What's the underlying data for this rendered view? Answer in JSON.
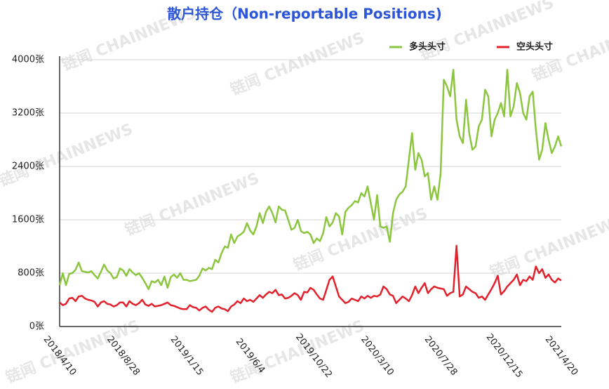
{
  "chart_data": {
    "type": "line",
    "title": "散户持仓（Non-reportable Positions)",
    "watermark": "链闻 CHAINNEWS",
    "categories": [
      "2018/4/10",
      null,
      null,
      null,
      null,
      null,
      null,
      null,
      null,
      null,
      null,
      null,
      null,
      null,
      null,
      null,
      null,
      null,
      null,
      null,
      "2018/8/28",
      null,
      null,
      null,
      null,
      null,
      null,
      null,
      null,
      null,
      null,
      null,
      null,
      null,
      null,
      null,
      null,
      null,
      null,
      null,
      "2019/1/15",
      null,
      null,
      null,
      null,
      null,
      null,
      null,
      null,
      null,
      null,
      null,
      null,
      null,
      null,
      null,
      null,
      null,
      null,
      null,
      "2019/6/4",
      null,
      null,
      null,
      null,
      null,
      null,
      null,
      null,
      null,
      null,
      null,
      null,
      null,
      null,
      null,
      null,
      null,
      null,
      null,
      "2019/10/22",
      null,
      null,
      null,
      null,
      null,
      null,
      null,
      null,
      null,
      null,
      null,
      null,
      null,
      null,
      null,
      null,
      null,
      null,
      null,
      "2020/3/10",
      null,
      null,
      null,
      null,
      null,
      null,
      null,
      null,
      null,
      null,
      null,
      null,
      null,
      null,
      null,
      null,
      null,
      null,
      null,
      "2020/7/28",
      null,
      null,
      null,
      null,
      null,
      null,
      null,
      null,
      null,
      null,
      null,
      null,
      null,
      null,
      null,
      null,
      null,
      null,
      null,
      "2020/12/15",
      null,
      null,
      null,
      null,
      null,
      null,
      null,
      null,
      null,
      null,
      null,
      null,
      null,
      null,
      null,
      null,
      null,
      "2021/4/20"
    ],
    "series": [
      {
        "name": "多头头寸",
        "color": "#8cc63f",
        "values": [
          620,
          800,
          620,
          790,
          800,
          850,
          960,
          830,
          820,
          810,
          830,
          770,
          720,
          820,
          930,
          840,
          800,
          720,
          740,
          870,
          840,
          760,
          860,
          810,
          770,
          800,
          730,
          650,
          560,
          680,
          660,
          700,
          620,
          750,
          580,
          740,
          780,
          730,
          800,
          700,
          700,
          680,
          690,
          700,
          760,
          870,
          840,
          880,
          860,
          1000,
          960,
          1100,
          1200,
          1180,
          1380,
          1250,
          1350,
          1380,
          1420,
          1550,
          1440,
          1380,
          1500,
          1700,
          1550,
          1720,
          1800,
          1700,
          1560,
          1800,
          1750,
          1740,
          1600,
          1450,
          1480,
          1600,
          1430,
          1400,
          1420,
          1380,
          1250,
          1320,
          1280,
          1400,
          1640,
          1500,
          1560,
          1700,
          1650,
          1380,
          1720,
          1780,
          1820,
          1880,
          1860,
          2000,
          1950,
          2100,
          1850,
          1600,
          1970,
          1500,
          1480,
          1500,
          1270,
          1700,
          1900,
          1980,
          2020,
          2100,
          2500,
          2900,
          2350,
          2600,
          2500,
          2250,
          2300,
          1900,
          2100,
          1900,
          2300,
          3700,
          3600,
          3450,
          3850,
          3100,
          2850,
          2750,
          3400,
          2900,
          2650,
          2700,
          3000,
          3100,
          3550,
          3450,
          2850,
          3100,
          3200,
          3350,
          3150,
          3850,
          3150,
          3300,
          3650,
          3500,
          3200,
          3100,
          3450,
          3520,
          2950,
          2500,
          2650,
          3050,
          2800,
          2600,
          2700,
          2850,
          2700
        ]
      },
      {
        "name": "空头头寸",
        "color": "#e3202b",
        "values": [
          360,
          320,
          340,
          420,
          430,
          380,
          450,
          460,
          420,
          400,
          390,
          370,
          300,
          360,
          380,
          340,
          330,
          300,
          320,
          360,
          360,
          300,
          380,
          340,
          320,
          350,
          400,
          330,
          310,
          340,
          300,
          310,
          320,
          340,
          360,
          320,
          310,
          290,
          270,
          260,
          260,
          320,
          290,
          280,
          240,
          280,
          300,
          250,
          220,
          280,
          300,
          270,
          260,
          230,
          300,
          330,
          380,
          350,
          420,
          380,
          400,
          370,
          420,
          470,
          430,
          480,
          520,
          500,
          550,
          470,
          480,
          420,
          430,
          460,
          500,
          470,
          400,
          520,
          510,
          580,
          550,
          480,
          420,
          400,
          550,
          700,
          750,
          600,
          450,
          400,
          350,
          370,
          420,
          400,
          380,
          450,
          420,
          460,
          430,
          460,
          450,
          480,
          600,
          560,
          480,
          460,
          350,
          400,
          450,
          420,
          380,
          470,
          600,
          500,
          580,
          650,
          500,
          560,
          600,
          580,
          570,
          560,
          460,
          500,
          520,
          1210,
          450,
          480,
          600,
          560,
          520,
          500,
          430,
          450,
          400,
          480,
          560,
          650,
          760,
          480,
          530,
          600,
          650,
          700,
          780,
          620,
          700,
          680,
          750,
          700,
          900,
          800,
          860,
          730,
          780,
          700,
          660,
          720,
          690
        ]
      }
    ],
    "ylim": [
      0,
      4000
    ],
    "yticks": [
      {
        "value": 0,
        "label": "0张"
      },
      {
        "value": 800,
        "label": "800张"
      },
      {
        "value": 1600,
        "label": "1600张"
      },
      {
        "value": 2400,
        "label": "2400张"
      },
      {
        "value": 3200,
        "label": "3200张"
      },
      {
        "value": 4000,
        "label": "4000张"
      }
    ],
    "grid": true,
    "legend": "top-right"
  }
}
